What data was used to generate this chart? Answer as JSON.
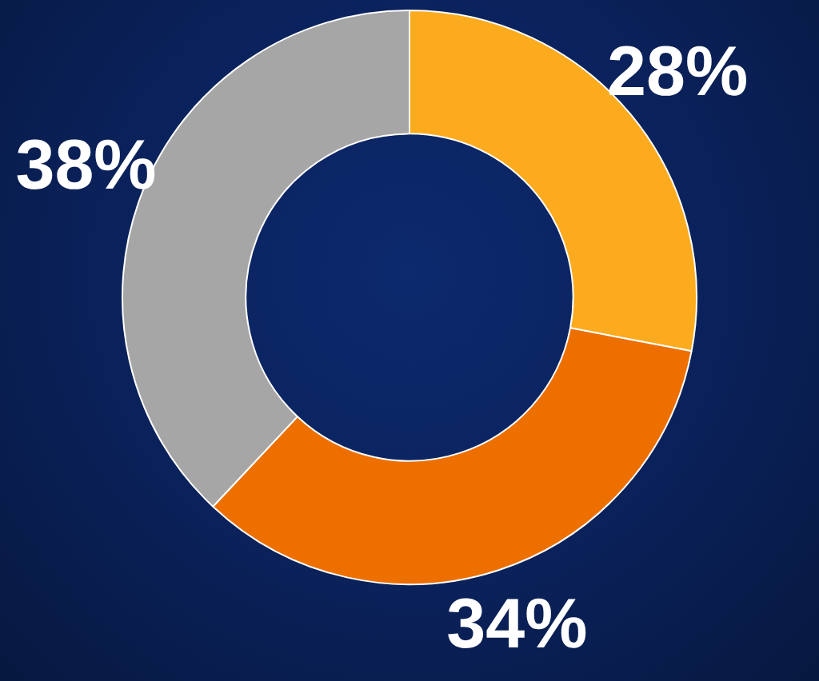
{
  "chart_data": {
    "type": "donut",
    "categories": [
      null,
      null,
      null
    ],
    "values": [
      28,
      34,
      38
    ],
    "colors": [
      "#fcab1f",
      "#ec6f00",
      "#a6a6a6"
    ],
    "value_labels": [
      "28%",
      "34%",
      "38%"
    ],
    "legend": false
  }
}
